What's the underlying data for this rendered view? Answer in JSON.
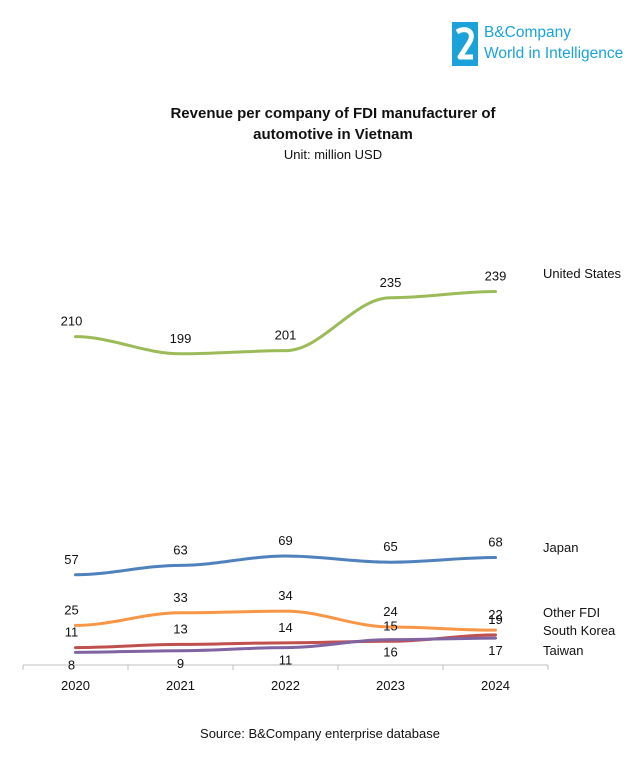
{
  "brand": {
    "line1": "B&Company",
    "line2": "World in Intelligence",
    "color": "#1ba3d9"
  },
  "chart_data": {
    "type": "line",
    "title": "Revenue per company of FDI manufacturer of automotive in Vietnam",
    "subtitle": "Unit: million USD",
    "categories": [
      "2020",
      "2021",
      "2022",
      "2023",
      "2024"
    ],
    "series": [
      {
        "name": "United States",
        "values": [
          210,
          199,
          201,
          235,
          239
        ],
        "color": "#9bbb59"
      },
      {
        "name": "Japan",
        "values": [
          57,
          63,
          69,
          65,
          68
        ],
        "color": "#4f81bd"
      },
      {
        "name": "Other FDI",
        "values": [
          25,
          33,
          34,
          24,
          22
        ],
        "color": "#f79646"
      },
      {
        "name": "South Korea",
        "values": [
          11,
          13,
          14,
          15,
          19
        ],
        "color": "#c0504d"
      },
      {
        "name": "Taiwan",
        "values": [
          8,
          9,
          11,
          16,
          17
        ],
        "color": "#8064a2"
      }
    ],
    "ylim": [
      0,
      260
    ],
    "grid": false,
    "legend": "right, labels at line ends"
  },
  "source": "Source: B&Company enterprise database"
}
